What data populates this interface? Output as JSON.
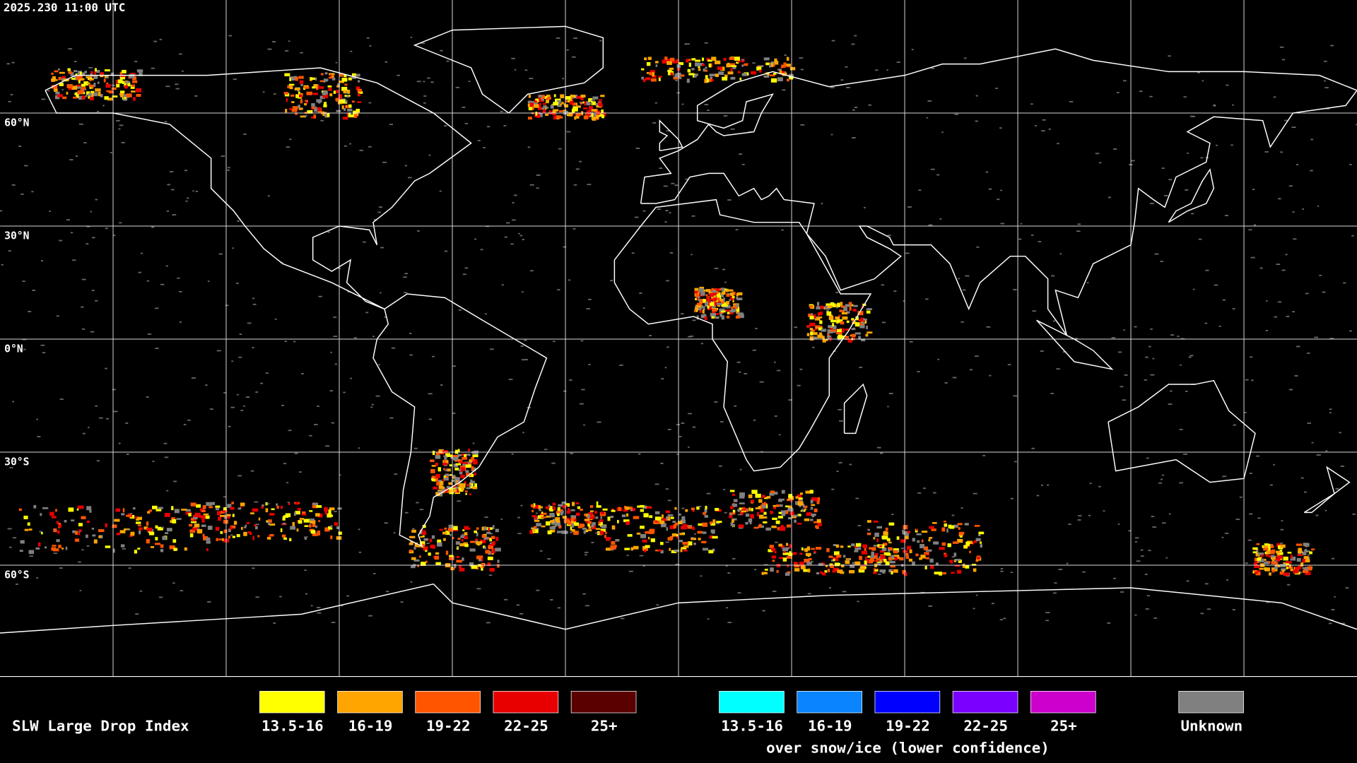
{
  "header": {
    "timestamp": "2025.230 11:00 UTC"
  },
  "map": {
    "lat_labels": [
      "60°N",
      "30°N",
      "0°N",
      "30°S",
      "60°S"
    ]
  },
  "legend": {
    "title": "SLW Large Drop Index",
    "groups": [
      {
        "items": [
          {
            "label": "13.5-16",
            "color": "#ffff00"
          },
          {
            "label": "16-19",
            "color": "#ffa500"
          },
          {
            "label": "19-22",
            "color": "#ff5500"
          },
          {
            "label": "22-25",
            "color": "#e80000"
          },
          {
            "label": "25+",
            "color": "#5a0000"
          }
        ]
      },
      {
        "items": [
          {
            "label": "13.5-16",
            "color": "#00ffff"
          },
          {
            "label": "16-19",
            "color": "#0a84ff"
          },
          {
            "label": "19-22",
            "color": "#0000ff"
          },
          {
            "label": "22-25",
            "color": "#7a00ff"
          },
          {
            "label": "25+",
            "color": "#cc00cc"
          }
        ],
        "note": "over snow/ice (lower confidence)"
      }
    ],
    "unknown": {
      "label": "Unknown",
      "color": "#808080"
    }
  }
}
